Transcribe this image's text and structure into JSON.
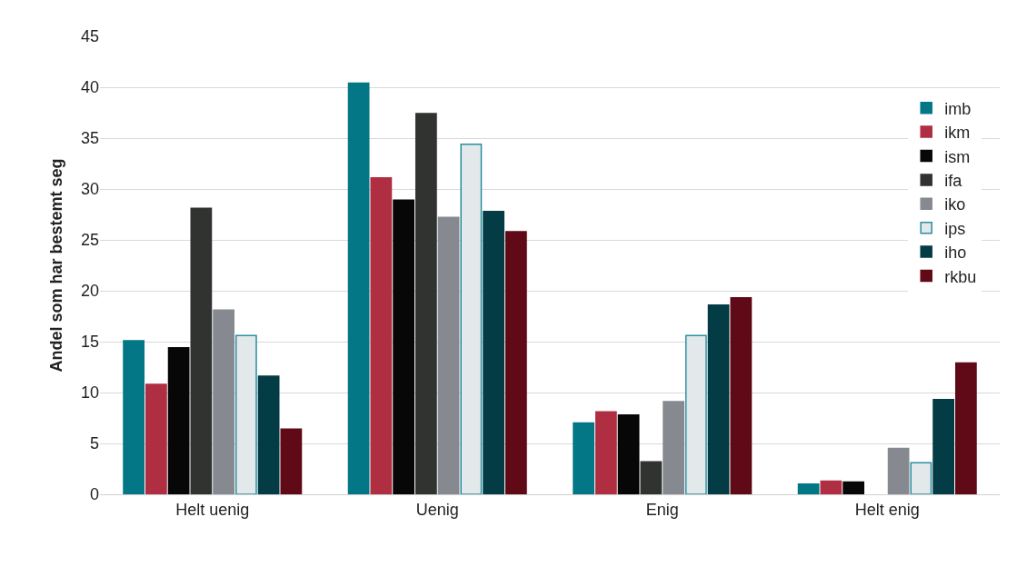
{
  "chart_data": {
    "type": "bar",
    "ylabel": "Andel som har bestemt seg",
    "categories": [
      "Helt uenig",
      "Uenig",
      "Enig",
      "Helt enig"
    ],
    "series": [
      {
        "name": "imb",
        "color": "#037785",
        "values": [
          15.1,
          40.4,
          7.0,
          1.0
        ]
      },
      {
        "name": "ikm",
        "color": "#b02e42",
        "values": [
          10.8,
          31.1,
          8.1,
          1.3
        ]
      },
      {
        "name": "ism",
        "color": "#070707",
        "values": [
          14.4,
          28.9,
          7.8,
          1.2
        ]
      },
      {
        "name": "ifa",
        "color": "#313331",
        "values": [
          28.1,
          37.4,
          3.2,
          null
        ]
      },
      {
        "name": "iko",
        "color": "#868a90",
        "values": [
          18.1,
          27.2,
          9.1,
          4.5
        ]
      },
      {
        "name": "ips",
        "color": "#e3e8eb",
        "values": [
          15.6,
          34.4,
          15.6,
          3.1
        ]
      },
      {
        "name": "iho",
        "color": "#043c45",
        "values": [
          11.6,
          27.8,
          18.6,
          9.3
        ]
      },
      {
        "name": "rkbu",
        "color": "#600a17",
        "values": [
          6.4,
          25.8,
          19.3,
          12.9
        ]
      }
    ],
    "ylim": [
      0,
      45
    ],
    "yticks": [
      0,
      5,
      10,
      15,
      20,
      25,
      30,
      35,
      40,
      45
    ],
    "grid": "y",
    "legend": "top right"
  }
}
